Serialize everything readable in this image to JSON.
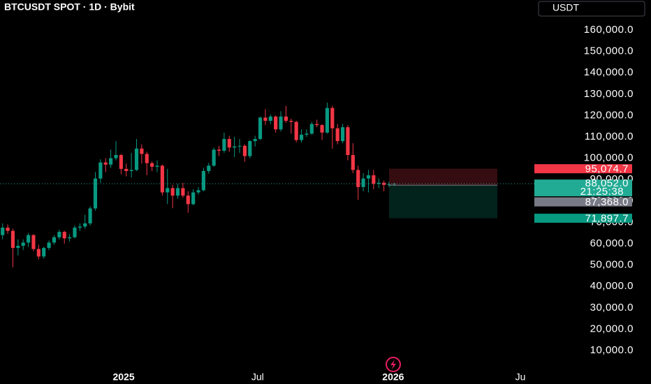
{
  "chart_data": {
    "type": "candlestick",
    "title": "BTCUSDT SPOT · 1D · Bybit",
    "currency": "USDT",
    "up_color": "#089981",
    "down_color": "#f23645",
    "open": [
      64000,
      67500,
      66000,
      58000,
      59000,
      60500,
      64000,
      57500,
      54000,
      58000,
      60500,
      63000,
      65500,
      62500,
      63000,
      67500,
      68000,
      69500,
      76500,
      90500,
      98000,
      97000,
      100000,
      101500,
      95000,
      94000,
      94500,
      104500,
      102000,
      97700,
      96000,
      96500,
      84000,
      86000,
      82500,
      86000,
      82500,
      78500,
      84000,
      85000,
      94000,
      96500,
      104000,
      103500,
      109000,
      105000,
      105500,
      105800,
      101000,
      108000,
      109000,
      119000,
      117500,
      119500,
      113500,
      119500,
      117500,
      117000,
      108500,
      111000,
      111500,
      116000,
      115500,
      112000,
      123500,
      114000,
      108000,
      114500,
      101500,
      94500,
      86500,
      90500,
      92000,
      88000,
      88500,
      87500,
      87800
    ],
    "high": [
      69500,
      69000,
      67000,
      62000,
      62000,
      65000,
      64500,
      59500,
      58500,
      61500,
      64000,
      66500,
      66000,
      64500,
      68500,
      69500,
      73500,
      77500,
      93500,
      99500,
      100000,
      104000,
      108000,
      102000,
      97500,
      102500,
      109000,
      106500,
      103000,
      98500,
      99000,
      97000,
      95000,
      87500,
      88000,
      88500,
      84500,
      85500,
      86500,
      95500,
      97800,
      105000,
      105800,
      112000,
      110500,
      110000,
      109000,
      106500,
      108500,
      110500,
      119500,
      123000,
      120500,
      120000,
      122000,
      124500,
      118500,
      117500,
      113500,
      113500,
      117000,
      118000,
      116000,
      126000,
      124500,
      116000,
      116000,
      115500,
      107000,
      96500,
      93000,
      94500,
      94500,
      90500,
      89500,
      89000,
      88500
    ],
    "low": [
      62000,
      64500,
      49000,
      54500,
      57000,
      58500,
      56500,
      52600,
      53000,
      57000,
      59500,
      62000,
      60000,
      61000,
      62500,
      66000,
      67000,
      68500,
      75500,
      88500,
      93500,
      95500,
      99000,
      92500,
      91500,
      91000,
      94000,
      97500,
      92000,
      94000,
      93500,
      82500,
      78500,
      76600,
      81000,
      81500,
      74500,
      78000,
      83000,
      84500,
      92800,
      96000,
      101000,
      102500,
      103000,
      100500,
      102500,
      98300,
      100000,
      105500,
      108500,
      115500,
      116000,
      112000,
      112500,
      116500,
      111500,
      107500,
      107300,
      110000,
      111000,
      114500,
      108500,
      111500,
      104500,
      106500,
      107000,
      99000,
      93000,
      80500,
      84500,
      84000,
      85500,
      86000,
      84500,
      86500,
      87000
    ],
    "close": [
      67500,
      66000,
      58000,
      59000,
      60500,
      64000,
      57500,
      54000,
      58000,
      60500,
      63000,
      65500,
      62500,
      63000,
      67500,
      68000,
      69500,
      76500,
      90500,
      98000,
      97000,
      100000,
      101500,
      95000,
      94000,
      94500,
      104500,
      102000,
      97700,
      96000,
      96500,
      84000,
      86000,
      82500,
      86000,
      82500,
      78500,
      84000,
      85000,
      94000,
      96500,
      104000,
      103500,
      109000,
      105000,
      105500,
      105800,
      101000,
      108000,
      109000,
      119000,
      117500,
      119500,
      113500,
      119500,
      117500,
      117000,
      108500,
      111000,
      111500,
      116000,
      115500,
      112000,
      123500,
      114000,
      108000,
      114500,
      101500,
      94500,
      86500,
      90500,
      92000,
      88000,
      88500,
      87500,
      87800,
      88052
    ],
    "xlim": [
      0,
      103.7
    ],
    "xticks": [
      {
        "value": 24,
        "label": "2025"
      },
      {
        "value": 50,
        "label": "Jul"
      },
      {
        "value": 76.3,
        "label": "2026"
      },
      {
        "value": 101,
        "label": "Ju"
      }
    ],
    "ylim": [
      850,
      174050
    ],
    "yticks": [
      {
        "value": 10000,
        "label": "10,000.0"
      },
      {
        "value": 20000,
        "label": "20,000.0"
      },
      {
        "value": 30000,
        "label": "30,000.0"
      },
      {
        "value": 40000,
        "label": "40,000.0"
      },
      {
        "value": 50000,
        "label": "50,000.0"
      },
      {
        "value": 60000,
        "label": "60,000.0"
      },
      {
        "value": 70000,
        "label": "70,000.0"
      },
      {
        "value": 80000,
        "label": "80,000.0"
      },
      {
        "value": 90000,
        "label": "90,000.0"
      },
      {
        "value": 100000,
        "label": "100,000.0"
      },
      {
        "value": 110000,
        "label": "110,000.0"
      },
      {
        "value": 120000,
        "label": "120,000.0"
      },
      {
        "value": 130000,
        "label": "130,000.0"
      },
      {
        "value": 140000,
        "label": "140,000.0"
      },
      {
        "value": 150000,
        "label": "150,000.0"
      },
      {
        "value": 160000,
        "label": "160,000.0"
      }
    ],
    "last_price": {
      "value": 88052,
      "label": "88,052.0",
      "countdown": "21:25:38"
    },
    "position": {
      "stop": {
        "value": 95074.7,
        "label": "95,074.7"
      },
      "entry": {
        "value": 87368,
        "label": "87,368.0"
      },
      "target": {
        "value": 71897.7,
        "label": "71,897.7"
      }
    }
  }
}
